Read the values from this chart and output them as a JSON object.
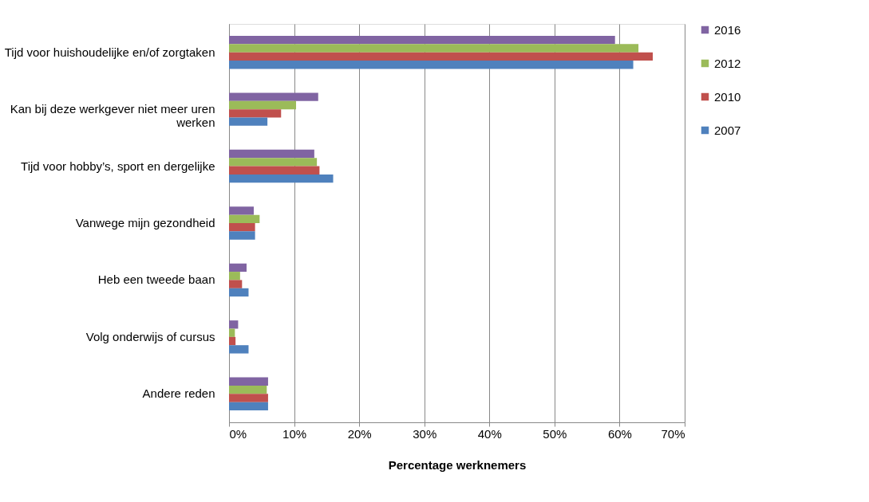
{
  "chart_data": {
    "type": "bar",
    "orientation": "horizontal",
    "xlabel": "Percentage werknemers",
    "categories": [
      "Tijd voor huishoudelijke en/of zorgtaken",
      "Kan bij deze werkgever niet meer uren werken",
      "Tijd voor hobby’s, sport en dergelijke",
      "Vanwege mijn gezondheid",
      "Heb een tweede baan",
      "Volg onderwijs of cursus",
      "Andere reden"
    ],
    "series": [
      {
        "name": "2016",
        "color": "#8064a2",
        "values": [
          59.3,
          13.7,
          13.1,
          3.8,
          2.7,
          1.4,
          6.0
        ]
      },
      {
        "name": "2012",
        "color": "#9bbb59",
        "values": [
          62.9,
          10.3,
          13.5,
          4.7,
          1.7,
          0.9,
          5.8
        ]
      },
      {
        "name": "2010",
        "color": "#c0504d",
        "values": [
          65.1,
          8.0,
          13.9,
          4.0,
          2.0,
          1.0,
          6.0
        ]
      },
      {
        "name": "2007",
        "color": "#4f81bd",
        "values": [
          62.1,
          5.9,
          16.0,
          4.0,
          3.0,
          3.0,
          6.0
        ]
      }
    ],
    "xlim": [
      0,
      70
    ],
    "xticks": [
      {
        "value": 0,
        "label": "0%"
      },
      {
        "value": 10,
        "label": "10%"
      },
      {
        "value": 20,
        "label": "20%"
      },
      {
        "value": 30,
        "label": "30%"
      },
      {
        "value": 40,
        "label": "40%"
      },
      {
        "value": 50,
        "label": "50%"
      },
      {
        "value": 60,
        "label": "60%"
      },
      {
        "value": 70,
        "label": "70%"
      }
    ],
    "grid": "x",
    "legend": "right"
  }
}
